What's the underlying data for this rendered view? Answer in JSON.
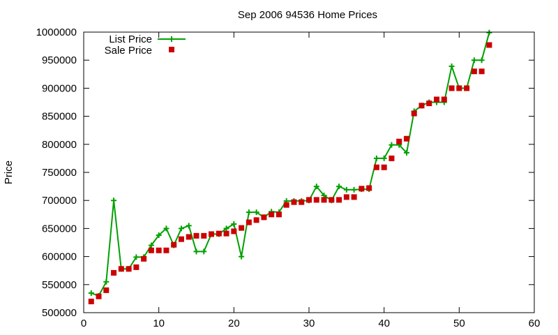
{
  "chart_data": {
    "type": "line",
    "title": "Sep 2006 94536 Home Prices",
    "xlabel": "",
    "ylabel": "Price",
    "xlim": [
      0,
      60
    ],
    "ylim": [
      500000,
      1000000
    ],
    "x_ticks": [
      0,
      10,
      20,
      30,
      40,
      50,
      60
    ],
    "y_ticks": [
      500000,
      550000,
      600000,
      650000,
      700000,
      750000,
      800000,
      850000,
      900000,
      950000,
      1000000
    ],
    "grid": false,
    "legend_position": "top-left",
    "series": [
      {
        "name": "List Price",
        "style": "line+cross",
        "color": "#00a000",
        "x": [
          1,
          2,
          3,
          4,
          5,
          6,
          7,
          8,
          9,
          10,
          11,
          12,
          13,
          14,
          15,
          16,
          17,
          18,
          19,
          20,
          21,
          22,
          23,
          24,
          25,
          26,
          27,
          28,
          29,
          30,
          31,
          32,
          33,
          34,
          35,
          36,
          37,
          38,
          39,
          40,
          41,
          42,
          43,
          44,
          45,
          46,
          47,
          48,
          49,
          50,
          51,
          52,
          53,
          54
        ],
        "values": [
          535000,
          530000,
          555000,
          700000,
          578000,
          578000,
          599000,
          599000,
          620000,
          638000,
          650000,
          620000,
          650000,
          655000,
          609000,
          609000,
          640000,
          640000,
          650000,
          658000,
          600000,
          679000,
          679000,
          670000,
          680000,
          679000,
          699000,
          699000,
          699000,
          700000,
          725000,
          709000,
          700000,
          725000,
          719000,
          719000,
          720000,
          720000,
          775000,
          775000,
          799000,
          799000,
          785000,
          859000,
          869000,
          875000,
          875000,
          875000,
          939000,
          900000,
          900000,
          950000,
          950000,
          999000
        ]
      },
      {
        "name": "Sale Price",
        "style": "square",
        "color": "#cc0000",
        "x": [
          1,
          2,
          3,
          4,
          5,
          6,
          7,
          8,
          9,
          10,
          11,
          12,
          13,
          14,
          15,
          16,
          17,
          18,
          19,
          20,
          21,
          22,
          23,
          24,
          25,
          26,
          27,
          28,
          29,
          30,
          31,
          32,
          33,
          34,
          35,
          36,
          37,
          38,
          39,
          40,
          41,
          42,
          43,
          44,
          45,
          46,
          47,
          48,
          49,
          50,
          51,
          52,
          53,
          54
        ],
        "values": [
          520000,
          529000,
          540000,
          571000,
          578000,
          578000,
          581000,
          596000,
          611000,
          611000,
          611000,
          621000,
          631000,
          635000,
          637000,
          637000,
          640000,
          641000,
          641000,
          645000,
          651000,
          661000,
          665000,
          670000,
          675000,
          675000,
          692000,
          697000,
          697000,
          701000,
          701000,
          701000,
          701000,
          701000,
          706000,
          706000,
          721000,
          722000,
          759000,
          759000,
          775000,
          805000,
          810000,
          855000,
          869000,
          873000,
          880000,
          880000,
          900000,
          900000,
          900000,
          930000,
          930000,
          977000
        ]
      }
    ]
  }
}
